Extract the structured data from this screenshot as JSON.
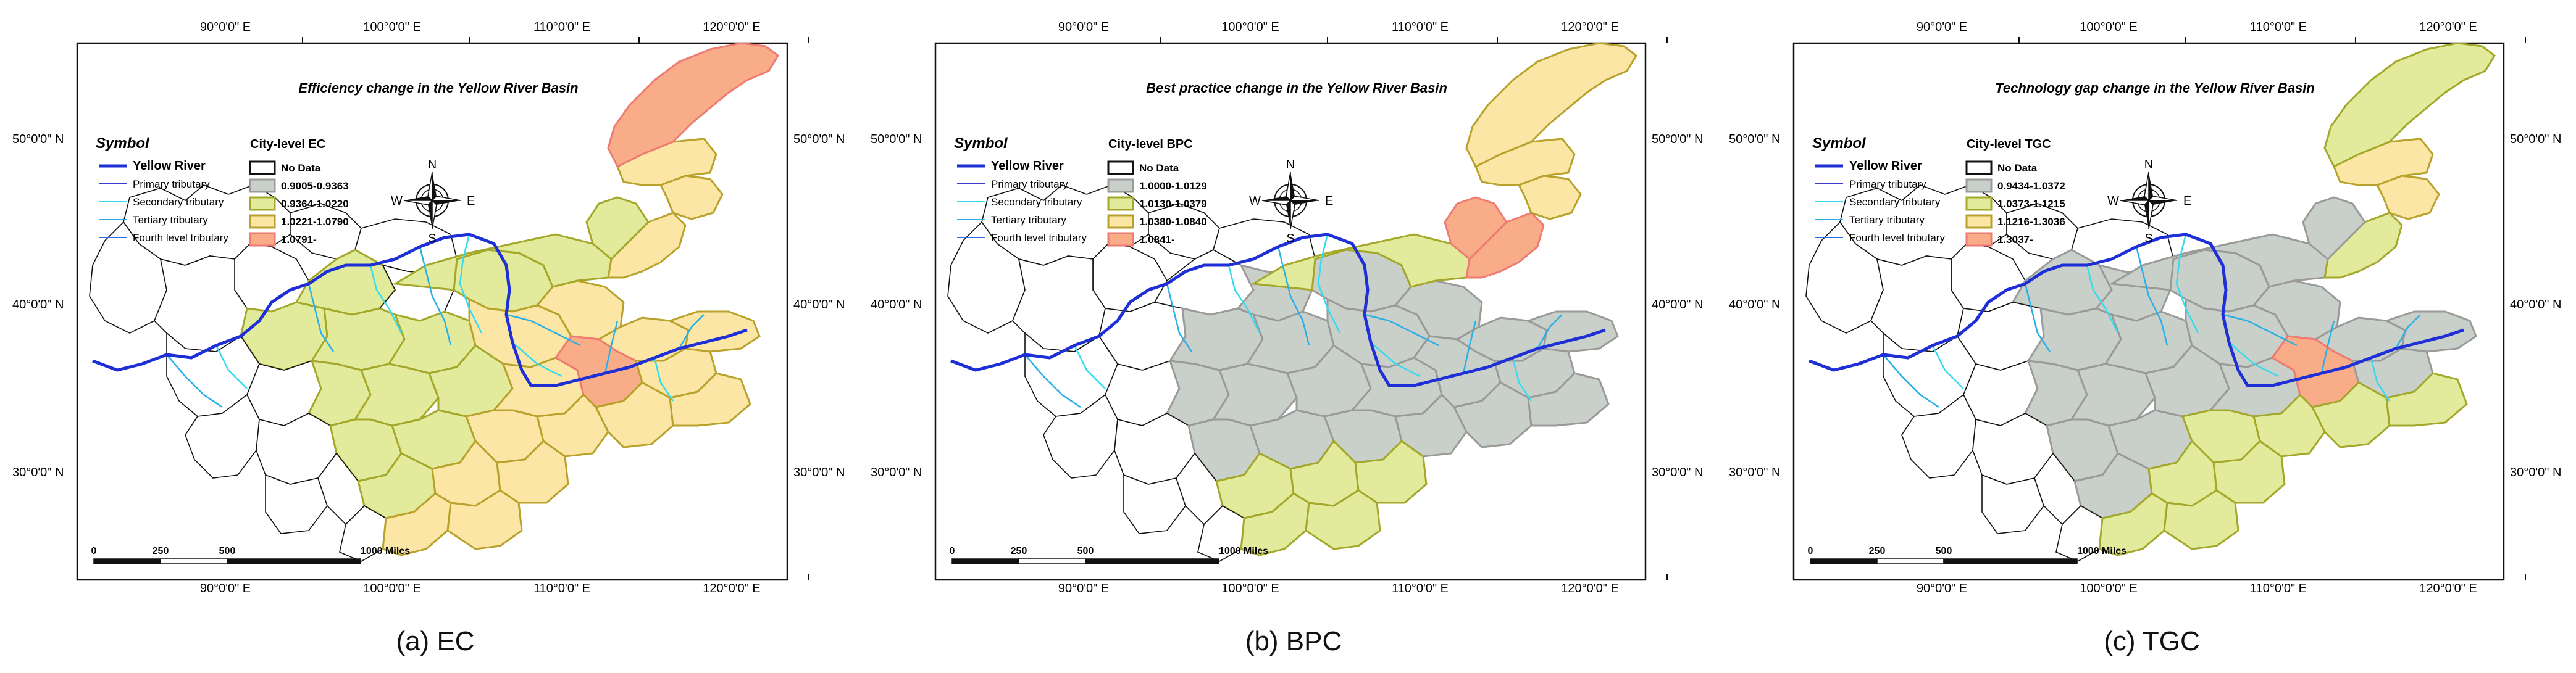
{
  "colors": {
    "no_data": "#ffffff",
    "class1": "#c9cfc9",
    "class2": "#e2ea9c",
    "class3": "#fbe6a6",
    "class4": "#f8ad88",
    "class_borders": [
      "#9a9a9a",
      "#a4a82a",
      "#b8a22c",
      "#ef7a72"
    ],
    "yellow_river": "#1f2fd6",
    "primary_tributary": "#3a3ad0",
    "secondary_tributary": "#33dcf0",
    "tertiary_tributary": "#2ab0e6",
    "fourth_tributary": "#2a6ee6"
  },
  "axes": {
    "top_lon": [
      "90°0'0\" E",
      "100°0'0\" E",
      "110°0'0\" E",
      "120°0'0\" E"
    ],
    "bottom_lon": [
      "90°0'0\" E",
      "100°0'0\" E",
      "110°0'0\" E",
      "120°0'0\" E"
    ],
    "left_lat": [
      "50°0'0\" N",
      "40°0'0\" N",
      "30°0'0\" N"
    ],
    "right_lat": [
      "50°0'0\" N",
      "40°0'0\" N",
      "30°0'0\" N"
    ]
  },
  "symbol_legend": {
    "heading": "Symbol",
    "items": [
      "Yellow River",
      "Primary tributary",
      "Secondary tributary",
      "Tertiary tributary",
      "Fourth level tributary"
    ]
  },
  "compass": {
    "n": "N",
    "s": "S",
    "e": "E",
    "w": "W"
  },
  "scale_bar": {
    "ticks": [
      "0",
      "250",
      "500",
      "1000 Miles"
    ]
  },
  "panels": [
    {
      "title": "Efficiency change in the Yellow River Basin",
      "legend_title": "City-level EC",
      "classes": [
        "No Data",
        "0.9005-0.9363",
        "0.9364-1.0220",
        "1.0221-1.0790",
        "1.0791-"
      ],
      "caption": "(a) EC"
    },
    {
      "title": "Best practice change in the Yellow River Basin",
      "legend_title": "City-level BPC",
      "classes": [
        "No Data",
        "1.0000-1.0129",
        "1.0130-1.0379",
        "1.0380-1.0840",
        "1.0841-"
      ],
      "caption": "(b) BPC"
    },
    {
      "title": "Technology gap change in the Yellow River Basin",
      "legend_title": "City-level TGC",
      "classes": [
        "No Data",
        "0.9434-1.0372",
        "1.0373-1.1215",
        "1.1216-1.3036",
        "1.3037-"
      ],
      "caption": "(c) TGC"
    }
  ]
}
